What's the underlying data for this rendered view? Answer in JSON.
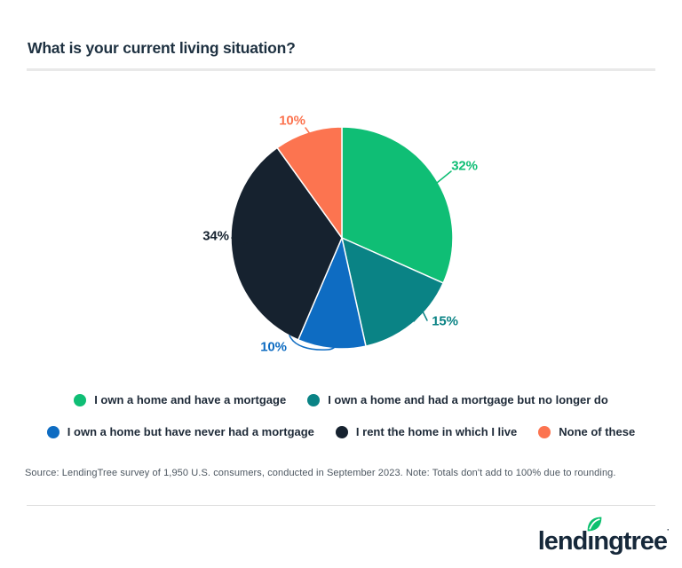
{
  "page": {
    "title": "What is your current living situation?",
    "source_note": "Source: LendingTree survey of 1,950 U.S. consumers, conducted in September 2023. Note: Totals don't add to 100% due to rounding.",
    "brand": {
      "logo_text": "lendingtree",
      "logo_tm_mark": "·",
      "logo_color": "#16283a",
      "leaf_color": "#0cc06e"
    }
  },
  "chart_data": {
    "type": "pie",
    "title": "What is your current living situation?",
    "start_angle_deg": 0,
    "direction": "clockwise",
    "legend_position": "bottom",
    "slices": [
      {
        "label": "I own a home and have a mortgage",
        "value": 32,
        "display": "32%",
        "color": "#0fbe75"
      },
      {
        "label": "I own a home and had a mortgage but no longer do",
        "value": 15,
        "display": "15%",
        "color": "#0a8385"
      },
      {
        "label": "I own a home but have never had a mortgage",
        "value": 10,
        "display": "10%",
        "color": "#0e6cc2"
      },
      {
        "label": "I rent the home in which I live",
        "value": 34,
        "display": "34%",
        "color": "#16222f"
      },
      {
        "label": "None of these",
        "value": 10,
        "display": "10%",
        "color": "#fc7450"
      }
    ],
    "legend_rows": [
      [
        0,
        1
      ],
      [
        2,
        3,
        4
      ]
    ]
  }
}
